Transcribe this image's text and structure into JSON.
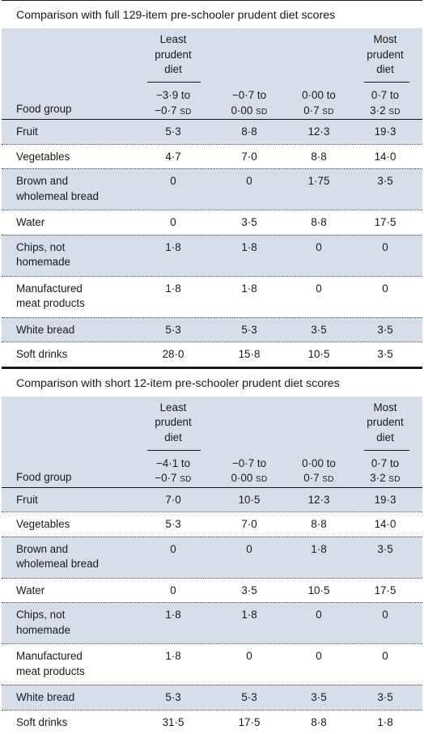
{
  "panels": [
    {
      "title": "Comparison with full 129-item pre-schooler prudent diet scores",
      "header": {
        "least_label": [
          "Least",
          "prudent",
          "diet"
        ],
        "most_label": [
          "Most",
          "prudent",
          "diet"
        ],
        "food_group": "Food group",
        "ranges": [
          {
            "line1": "−3·9 to",
            "line2": "−0·7",
            "unit": "SD"
          },
          {
            "line1": "−0·7 to",
            "line2": "0·00",
            "unit": "SD"
          },
          {
            "line1": "0·00 to",
            "line2": "0·7",
            "unit": "SD"
          },
          {
            "line1": "0·7 to",
            "line2": "3·2",
            "unit": "SD"
          }
        ]
      },
      "rows": [
        {
          "label": [
            "Fruit"
          ],
          "values": [
            "5·3",
            "8·8",
            "12·3",
            "19·3"
          ]
        },
        {
          "label": [
            "Vegetables"
          ],
          "values": [
            "4·7",
            "7·0",
            "8·8",
            "14·0"
          ]
        },
        {
          "label": [
            "Brown and",
            "wholemeal bread"
          ],
          "values": [
            "0",
            "0",
            "1·75",
            "3·5"
          ]
        },
        {
          "label": [
            "Water"
          ],
          "values": [
            "0",
            "3·5",
            "8·8",
            "17·5"
          ]
        },
        {
          "label": [
            "Chips, not",
            "homemade"
          ],
          "values": [
            "1·8",
            "1·8",
            "0",
            "0"
          ]
        },
        {
          "label": [
            "Manufactured",
            "meat products"
          ],
          "values": [
            "1·8",
            "1·8",
            "0",
            "0"
          ]
        },
        {
          "label": [
            "White bread"
          ],
          "values": [
            "5·3",
            "5·3",
            "3·5",
            "3·5"
          ]
        },
        {
          "label": [
            "Soft drinks"
          ],
          "values": [
            "28·0",
            "15·8",
            "10·5",
            "3·5"
          ]
        }
      ]
    },
    {
      "title": "Comparison with short 12-item pre-schooler prudent diet scores",
      "header": {
        "least_label": [
          "Least",
          "prudent",
          "diet"
        ],
        "most_label": [
          "Most",
          "prudent",
          "diet"
        ],
        "food_group": "Food group",
        "ranges": [
          {
            "line1": "−4·1 to",
            "line2": "−0·7",
            "unit": "SD"
          },
          {
            "line1": "−0·7 to",
            "line2": "0·00",
            "unit": "SD"
          },
          {
            "line1": "0·00 to",
            "line2": "0·7",
            "unit": "SD"
          },
          {
            "line1": "0·7 to",
            "line2": "3·2",
            "unit": "SD"
          }
        ]
      },
      "rows": [
        {
          "label": [
            "Fruit"
          ],
          "values": [
            "7·0",
            "10·5",
            "12·3",
            "19·3"
          ]
        },
        {
          "label": [
            "Vegetables"
          ],
          "values": [
            "5·3",
            "7·0",
            "8·8",
            "14·0"
          ]
        },
        {
          "label": [
            "Brown and",
            "wholemeal bread"
          ],
          "values": [
            "0",
            "0",
            "1·8",
            "3·5"
          ]
        },
        {
          "label": [
            "Water"
          ],
          "values": [
            "0",
            "3·5",
            "10·5",
            "17·5"
          ]
        },
        {
          "label": [
            "Chips, not",
            "homemade"
          ],
          "values": [
            "1·8",
            "1·8",
            "0",
            "0"
          ]
        },
        {
          "label": [
            "Manufactured",
            "meat products"
          ],
          "values": [
            "1·8",
            "0",
            "0",
            "0"
          ]
        },
        {
          "label": [
            "White bread"
          ],
          "values": [
            "5·3",
            "5·3",
            "3·5",
            "3·5"
          ]
        },
        {
          "label": [
            "Soft drinks"
          ],
          "values": [
            "31·5",
            "17·5",
            "8·8",
            "1·8"
          ]
        }
      ]
    }
  ]
}
